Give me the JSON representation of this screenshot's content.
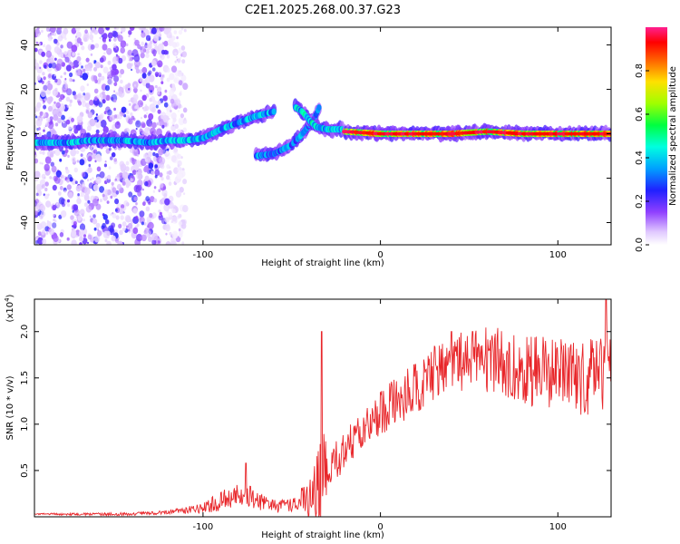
{
  "figure_title": "C2E1.2025.268.00.37.G23",
  "chart_data": [
    {
      "type": "heatmap",
      "title": "C2E1.2025.268.00.37.G23",
      "xlabel": "Height of straight line (km)",
      "ylabel": "Frequency (Hz)",
      "xlim": [
        -195,
        130
      ],
      "ylim": [
        -50,
        48
      ],
      "xticks": [
        -100,
        0,
        100
      ],
      "yticks": [
        -40,
        -20,
        0,
        20,
        40
      ],
      "colorbar": {
        "label": "Normalized spectral amplitude",
        "range": [
          0.0,
          1.0
        ],
        "ticks": [
          "0.0",
          "0.2",
          "0.4",
          "0.6",
          "0.8"
        ],
        "tick_values": [
          0.0,
          0.2,
          0.4,
          0.6,
          0.8
        ]
      },
      "noise_region_x": [
        -195,
        -120
      ],
      "traces": [
        {
          "name": "main-trace",
          "points": [
            [
              -195,
              -4
            ],
            [
              -185,
              -4
            ],
            [
              -175,
              -4
            ],
            [
              -165,
              -3
            ],
            [
              -145,
              -3
            ],
            [
              -130,
              -4
            ],
            [
              -120,
              -3
            ],
            [
              -110,
              -3
            ],
            [
              -100,
              -2
            ],
            [
              -90,
              2
            ],
            [
              -80,
              5
            ],
            [
              -70,
              8
            ],
            [
              -60,
              10
            ]
          ],
          "amp": 0.45
        },
        {
          "name": "lower-branch",
          "points": [
            [
              -70,
              -10
            ],
            [
              -60,
              -9
            ],
            [
              -55,
              -7
            ],
            [
              -50,
              -5
            ],
            [
              -45,
              -1
            ],
            [
              -40,
              4
            ],
            [
              -36,
              9
            ],
            [
              -34,
              13
            ]
          ],
          "amp": 0.4
        },
        {
          "name": "upper-branch",
          "points": [
            [
              -48,
              12
            ],
            [
              -44,
              10
            ],
            [
              -40,
              6
            ],
            [
              -36,
              3
            ],
            [
              -30,
              2
            ],
            [
              -25,
              2
            ],
            [
              -20,
              2
            ]
          ],
          "amp": 0.5
        },
        {
          "name": "stable-carrier",
          "points": [
            [
              -20,
              1
            ],
            [
              0,
              0
            ],
            [
              40,
              0
            ],
            [
              60,
              1
            ],
            [
              80,
              0
            ],
            [
              100,
              0
            ],
            [
              130,
              0
            ]
          ],
          "amp": 0.85
        }
      ]
    },
    {
      "type": "line",
      "xlabel": "Height of straight line (km)",
      "ylabel": "SNR (10 * v/v)",
      "multiplier": "(x10",
      "multiplier_exp": "4",
      "multiplier_close": ")",
      "xlim": [
        -195,
        130
      ],
      "ylim": [
        0.0,
        2.35
      ],
      "xticks": [
        -100,
        0,
        100
      ],
      "yticks": [
        0.5,
        1.0,
        1.5,
        2.0
      ],
      "ytick_labels": [
        "0.5",
        "1.0",
        "1.5",
        "2.0"
      ],
      "color": "#e8262a",
      "trend": [
        [
          -195,
          0.03
        ],
        [
          -140,
          0.03
        ],
        [
          -120,
          0.05
        ],
        [
          -100,
          0.1
        ],
        [
          -90,
          0.18
        ],
        [
          -80,
          0.24
        ],
        [
          -75,
          0.26
        ],
        [
          -70,
          0.18
        ],
        [
          -60,
          0.12
        ],
        [
          -50,
          0.14
        ],
        [
          -40,
          0.22
        ],
        [
          -37,
          0.3
        ],
        [
          -34,
          0.5
        ],
        [
          -32,
          0.8
        ],
        [
          -30,
          0.42
        ],
        [
          -25,
          0.6
        ],
        [
          -20,
          0.75
        ],
        [
          -15,
          0.85
        ],
        [
          -10,
          0.95
        ],
        [
          -5,
          1.05
        ],
        [
          0,
          1.15
        ],
        [
          10,
          1.28
        ],
        [
          20,
          1.42
        ],
        [
          30,
          1.58
        ],
        [
          40,
          1.7
        ],
        [
          50,
          1.72
        ],
        [
          60,
          1.72
        ],
        [
          70,
          1.68
        ],
        [
          80,
          1.64
        ],
        [
          90,
          1.6
        ],
        [
          100,
          1.57
        ],
        [
          110,
          1.55
        ],
        [
          120,
          1.55
        ],
        [
          130,
          1.55
        ]
      ],
      "noise": [
        [
          -195,
          0.01
        ],
        [
          -120,
          0.02
        ],
        [
          -100,
          0.06
        ],
        [
          -80,
          0.15
        ],
        [
          -70,
          0.1
        ],
        [
          -60,
          0.07
        ],
        [
          -50,
          0.09
        ],
        [
          -40,
          0.2
        ],
        [
          -34,
          0.6
        ],
        [
          -30,
          0.25
        ],
        [
          -20,
          0.22
        ],
        [
          -10,
          0.22
        ],
        [
          0,
          0.25
        ],
        [
          20,
          0.28
        ],
        [
          40,
          0.3
        ],
        [
          60,
          0.38
        ],
        [
          80,
          0.4
        ],
        [
          100,
          0.4
        ],
        [
          130,
          0.45
        ]
      ],
      "spikes": [
        [
          -76,
          0.58
        ],
        [
          -33,
          2.0
        ],
        [
          40,
          2.0
        ],
        [
          52,
          2.0
        ],
        [
          127,
          2.38
        ]
      ]
    }
  ]
}
